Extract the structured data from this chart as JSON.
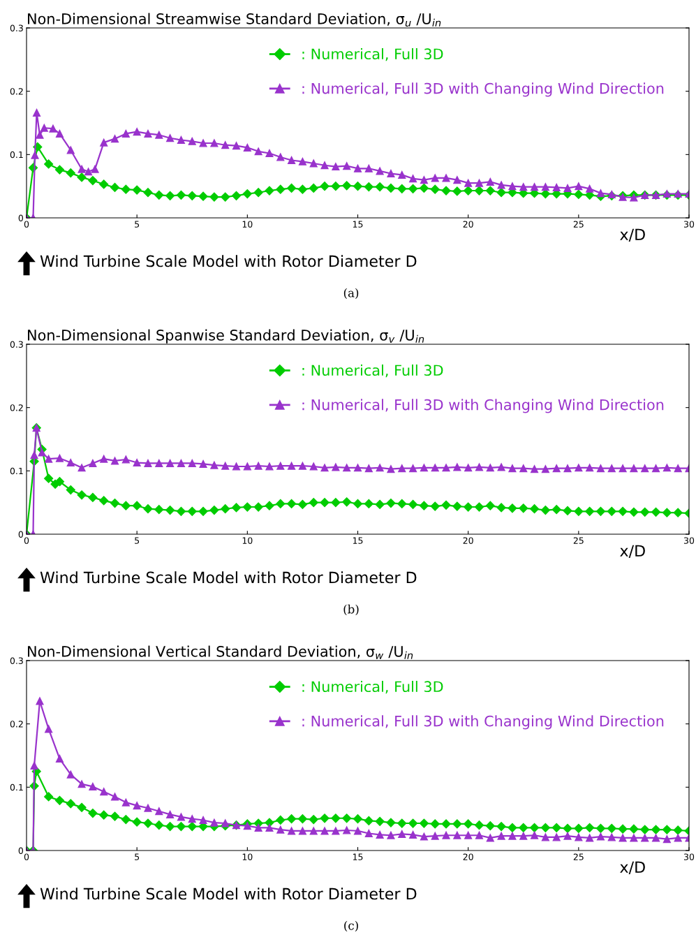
{
  "chart_data": [
    {
      "type": "line",
      "title": "Non-Dimensional Streamwise Standard Deviation, σ$_{u}$ /U$_{in}$",
      "xlabel": "x/D",
      "xlim": [
        0,
        30
      ],
      "xticks": [
        0,
        5,
        10,
        15,
        20,
        25,
        30
      ],
      "ylim": [
        0,
        0.3
      ],
      "yticks": [
        0,
        0.1,
        0.2,
        0.3
      ],
      "grid": false,
      "legend": "top right",
      "annotations": [
        "Wind Turbine Scale Model with Rotor Diameter D",
        "(a)"
      ],
      "series": [
        {
          "name": ": Numerical, Full 3D",
          "color": "#00cc00",
          "marker": "diamond",
          "x": [
            0,
            0.3,
            0.5,
            1,
            1.5,
            2,
            2.5,
            3,
            3.5,
            4,
            4.5,
            5,
            5.5,
            6,
            6.5,
            7,
            7.5,
            8,
            8.5,
            9,
            9.5,
            10,
            10.5,
            11,
            11.5,
            12,
            12.5,
            13,
            13.5,
            14,
            14.5,
            15,
            15.5,
            16,
            16.5,
            17,
            17.5,
            18,
            18.5,
            19,
            19.5,
            20,
            20.5,
            21,
            21.5,
            22,
            22.5,
            23,
            23.5,
            24,
            24.5,
            25,
            25.5,
            26,
            26.5,
            27,
            27.5,
            28,
            28.5,
            29,
            29.5,
            30
          ],
          "values": [
            0,
            0.079,
            0.112,
            0.085,
            0.076,
            0.071,
            0.064,
            0.059,
            0.053,
            0.048,
            0.045,
            0.044,
            0.04,
            0.036,
            0.035,
            0.036,
            0.035,
            0.034,
            0.033,
            0.033,
            0.035,
            0.038,
            0.04,
            0.043,
            0.045,
            0.047,
            0.045,
            0.047,
            0.05,
            0.05,
            0.051,
            0.05,
            0.049,
            0.049,
            0.047,
            0.046,
            0.046,
            0.047,
            0.045,
            0.043,
            0.042,
            0.043,
            0.043,
            0.043,
            0.04,
            0.04,
            0.039,
            0.039,
            0.038,
            0.038,
            0.038,
            0.037,
            0.036,
            0.034,
            0.035,
            0.035,
            0.036,
            0.036,
            0.036,
            0.036,
            0.036,
            0.036
          ]
        },
        {
          "name": ": Numerical, Full 3D with Changing Wind Direction",
          "color": "#9933cc",
          "marker": "triangle",
          "x": [
            0,
            0.3,
            0.38,
            0.46,
            0.6,
            0.8,
            1.2,
            1.5,
            2,
            2.5,
            2.8,
            3.1,
            3.5,
            4,
            4.5,
            5,
            5.5,
            6,
            6.5,
            7,
            7.5,
            8,
            8.5,
            9,
            9.5,
            10,
            10.5,
            11,
            11.5,
            12,
            12.5,
            13,
            13.5,
            14,
            14.5,
            15,
            15.5,
            16,
            16.5,
            17,
            17.5,
            18,
            18.5,
            19,
            19.5,
            20,
            20.5,
            21,
            21.5,
            22,
            22.5,
            23,
            23.5,
            24,
            24.5,
            25,
            25.5,
            26,
            26.5,
            27,
            27.5,
            28,
            28.5,
            29,
            29.5,
            30
          ],
          "values": [
            0,
            0,
            0.099,
            0.166,
            0.131,
            0.142,
            0.141,
            0.133,
            0.107,
            0.077,
            0.073,
            0.077,
            0.119,
            0.125,
            0.133,
            0.136,
            0.133,
            0.131,
            0.126,
            0.123,
            0.121,
            0.118,
            0.118,
            0.115,
            0.114,
            0.111,
            0.105,
            0.102,
            0.096,
            0.091,
            0.089,
            0.086,
            0.083,
            0.081,
            0.082,
            0.078,
            0.078,
            0.074,
            0.07,
            0.068,
            0.062,
            0.06,
            0.063,
            0.063,
            0.06,
            0.055,
            0.055,
            0.057,
            0.052,
            0.05,
            0.049,
            0.049,
            0.049,
            0.048,
            0.047,
            0.05,
            0.046,
            0.039,
            0.037,
            0.033,
            0.032,
            0.036,
            0.036,
            0.038,
            0.038,
            0.038
          ]
        }
      ]
    },
    {
      "type": "line",
      "title": "Non-Dimensional Spanwise Standard Deviation, σ$_{v}$ /U$_{in}$",
      "xlabel": "x/D",
      "xlim": [
        0,
        30
      ],
      "xticks": [
        0,
        5,
        10,
        15,
        20,
        25,
        30
      ],
      "ylim": [
        0,
        0.3
      ],
      "yticks": [
        0,
        0.1,
        0.2,
        0.3
      ],
      "grid": false,
      "legend": "top right",
      "annotations": [
        "Wind Turbine Scale Model with Rotor Diameter D",
        "(b)"
      ],
      "series": [
        {
          "name": ": Numerical, Full 3D",
          "color": "#00cc00",
          "marker": "diamond",
          "x": [
            0,
            0.35,
            0.45,
            0.7,
            1,
            1.3,
            1.5,
            2,
            2.5,
            3,
            3.5,
            4,
            4.5,
            5,
            5.5,
            6,
            6.5,
            7,
            7.5,
            8,
            8.5,
            9,
            9.5,
            10,
            10.5,
            11,
            11.5,
            12,
            12.5,
            13,
            13.5,
            14,
            14.5,
            15,
            15.5,
            16,
            16.5,
            17,
            17.5,
            18,
            18.5,
            19,
            19.5,
            20,
            20.5,
            21,
            21.5,
            22,
            22.5,
            23,
            23.5,
            24,
            24.5,
            25,
            25.5,
            26,
            26.5,
            27,
            27.5,
            28,
            28.5,
            29,
            29.5,
            30
          ],
          "values": [
            0,
            0.115,
            0.168,
            0.134,
            0.088,
            0.079,
            0.083,
            0.07,
            0.062,
            0.058,
            0.053,
            0.049,
            0.045,
            0.045,
            0.04,
            0.039,
            0.038,
            0.036,
            0.036,
            0.036,
            0.038,
            0.04,
            0.042,
            0.043,
            0.043,
            0.045,
            0.048,
            0.048,
            0.047,
            0.05,
            0.05,
            0.05,
            0.051,
            0.048,
            0.048,
            0.047,
            0.049,
            0.048,
            0.047,
            0.045,
            0.044,
            0.046,
            0.044,
            0.043,
            0.043,
            0.045,
            0.042,
            0.041,
            0.041,
            0.04,
            0.038,
            0.039,
            0.037,
            0.036,
            0.036,
            0.036,
            0.036,
            0.036,
            0.035,
            0.035,
            0.035,
            0.034,
            0.034,
            0.033
          ]
        },
        {
          "name": ": Numerical, Full 3D with Changing Wind Direction",
          "color": "#9933cc",
          "marker": "triangle",
          "x": [
            0,
            0.3,
            0.35,
            0.45,
            0.7,
            1,
            1.5,
            2,
            2.5,
            3,
            3.5,
            4,
            4.5,
            5,
            5.5,
            6,
            6.5,
            7,
            7.5,
            8,
            8.5,
            9,
            9.5,
            10,
            10.5,
            11,
            11.5,
            12,
            12.5,
            13,
            13.5,
            14,
            14.5,
            15,
            15.5,
            16,
            16.5,
            17,
            17.5,
            18,
            18.5,
            19,
            19.5,
            20,
            20.5,
            21,
            21.5,
            22,
            22.5,
            23,
            23.5,
            24,
            24.5,
            25,
            25.5,
            26,
            26.5,
            27,
            27.5,
            28,
            28.5,
            29,
            29.5,
            30
          ],
          "values": [
            0,
            0,
            0.125,
            0.168,
            0.129,
            0.119,
            0.12,
            0.113,
            0.105,
            0.112,
            0.119,
            0.116,
            0.118,
            0.113,
            0.112,
            0.112,
            0.112,
            0.112,
            0.112,
            0.111,
            0.109,
            0.108,
            0.107,
            0.107,
            0.108,
            0.107,
            0.108,
            0.108,
            0.108,
            0.107,
            0.105,
            0.106,
            0.105,
            0.105,
            0.104,
            0.105,
            0.103,
            0.104,
            0.104,
            0.105,
            0.105,
            0.105,
            0.106,
            0.105,
            0.106,
            0.105,
            0.106,
            0.104,
            0.104,
            0.103,
            0.103,
            0.104,
            0.104,
            0.105,
            0.105,
            0.104,
            0.104,
            0.104,
            0.104,
            0.104,
            0.104,
            0.105,
            0.104,
            0.104
          ]
        }
      ]
    },
    {
      "type": "line",
      "title": "Non-Dimensional Vertical Standard Deviation, σ$_{w}$ /U$_{in}$",
      "xlabel": "x/D",
      "xlim": [
        0,
        30
      ],
      "xticks": [
        0,
        5,
        10,
        15,
        20,
        25,
        30
      ],
      "ylim": [
        0,
        0.3
      ],
      "yticks": [
        0,
        0.1,
        0.2,
        0.3
      ],
      "grid": false,
      "legend": "top right",
      "annotations": [
        "Wind Turbine Scale Model with Rotor Diameter D",
        "(c)"
      ],
      "series": [
        {
          "name": ": Numerical, Full 3D",
          "color": "#00cc00",
          "marker": "diamond",
          "x": [
            0,
            0.3,
            0.35,
            0.45,
            1,
            1.5,
            2,
            2.5,
            3,
            3.5,
            4,
            4.5,
            5,
            5.5,
            6,
            6.5,
            7,
            7.5,
            8,
            8.5,
            9,
            9.5,
            10,
            10.5,
            11,
            11.5,
            12,
            12.5,
            13,
            13.5,
            14,
            14.5,
            15,
            15.5,
            16,
            16.5,
            17,
            17.5,
            18,
            18.5,
            19,
            19.5,
            20,
            20.5,
            21,
            21.5,
            22,
            22.5,
            23,
            23.5,
            24,
            24.5,
            25,
            25.5,
            26,
            26.5,
            27,
            27.5,
            28,
            28.5,
            29,
            29.5,
            30
          ],
          "values": [
            0,
            0,
            0.102,
            0.125,
            0.085,
            0.079,
            0.074,
            0.068,
            0.059,
            0.056,
            0.054,
            0.049,
            0.045,
            0.043,
            0.04,
            0.038,
            0.038,
            0.038,
            0.038,
            0.038,
            0.039,
            0.04,
            0.042,
            0.043,
            0.044,
            0.048,
            0.05,
            0.05,
            0.049,
            0.051,
            0.051,
            0.051,
            0.05,
            0.047,
            0.046,
            0.044,
            0.043,
            0.043,
            0.043,
            0.042,
            0.042,
            0.042,
            0.042,
            0.04,
            0.039,
            0.038,
            0.036,
            0.036,
            0.036,
            0.036,
            0.036,
            0.035,
            0.035,
            0.036,
            0.035,
            0.035,
            0.034,
            0.034,
            0.033,
            0.033,
            0.033,
            0.032,
            0.031
          ]
        },
        {
          "name": ": Numerical, Full 3D with Changing Wind Direction",
          "color": "#9933cc",
          "marker": "triangle",
          "x": [
            0,
            0.3,
            0.35,
            0.6,
            1,
            1.5,
            2,
            2.5,
            3,
            3.5,
            4,
            4.5,
            5,
            5.5,
            6,
            6.5,
            7,
            7.5,
            8,
            8.5,
            9,
            9.5,
            10,
            10.5,
            11,
            11.5,
            12,
            12.5,
            13,
            13.5,
            14,
            14.5,
            15,
            15.5,
            16,
            16.5,
            17,
            17.5,
            18,
            18.5,
            19,
            19.5,
            20,
            20.5,
            21,
            21.5,
            22,
            22.5,
            23,
            23.5,
            24,
            24.5,
            25,
            25.5,
            26,
            26.5,
            27,
            27.5,
            28,
            28.5,
            29,
            29.5,
            30
          ],
          "values": [
            0,
            0,
            0.134,
            0.236,
            0.192,
            0.145,
            0.12,
            0.105,
            0.101,
            0.093,
            0.085,
            0.076,
            0.071,
            0.067,
            0.062,
            0.057,
            0.053,
            0.05,
            0.048,
            0.044,
            0.043,
            0.04,
            0.039,
            0.036,
            0.036,
            0.033,
            0.031,
            0.031,
            0.031,
            0.031,
            0.031,
            0.032,
            0.031,
            0.027,
            0.025,
            0.024,
            0.026,
            0.025,
            0.022,
            0.023,
            0.024,
            0.024,
            0.024,
            0.024,
            0.02,
            0.023,
            0.023,
            0.023,
            0.024,
            0.021,
            0.021,
            0.023,
            0.021,
            0.02,
            0.022,
            0.021,
            0.02,
            0.02,
            0.02,
            0.02,
            0.018,
            0.02,
            0.02
          ]
        }
      ]
    }
  ]
}
